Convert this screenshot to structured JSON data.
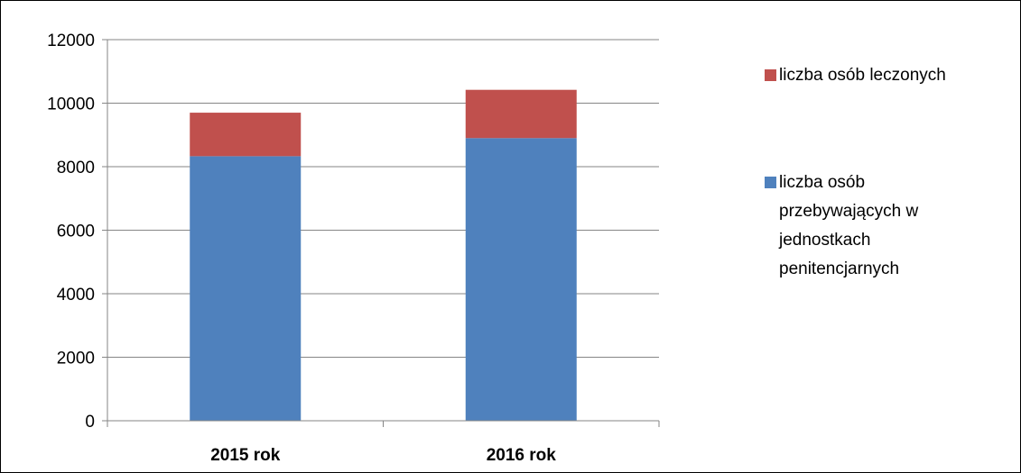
{
  "chart_data": {
    "type": "bar",
    "stacked": true,
    "categories": [
      "2015 rok",
      "2016 rok"
    ],
    "series": [
      {
        "name": "liczba osób przebywających w jednostkach penitencjarnych",
        "name_lines": [
          "liczba osób",
          "przebywających w",
          "jednostkach",
          "penitencjarnych"
        ],
        "color": "#4F81BD",
        "values": [
          8330,
          8900
        ]
      },
      {
        "name": "liczba osób leczonych",
        "name_lines": [
          "liczba osób leczonych"
        ],
        "color": "#C0504D",
        "values": [
          1370,
          1520
        ]
      }
    ],
    "yticks": [
      "0",
      "2000",
      "4000",
      "6000",
      "8000",
      "10000",
      "12000"
    ],
    "ylim": [
      0,
      12000
    ],
    "grid": true,
    "legend_position": "right",
    "title": "",
    "xlabel": "",
    "ylabel": ""
  }
}
